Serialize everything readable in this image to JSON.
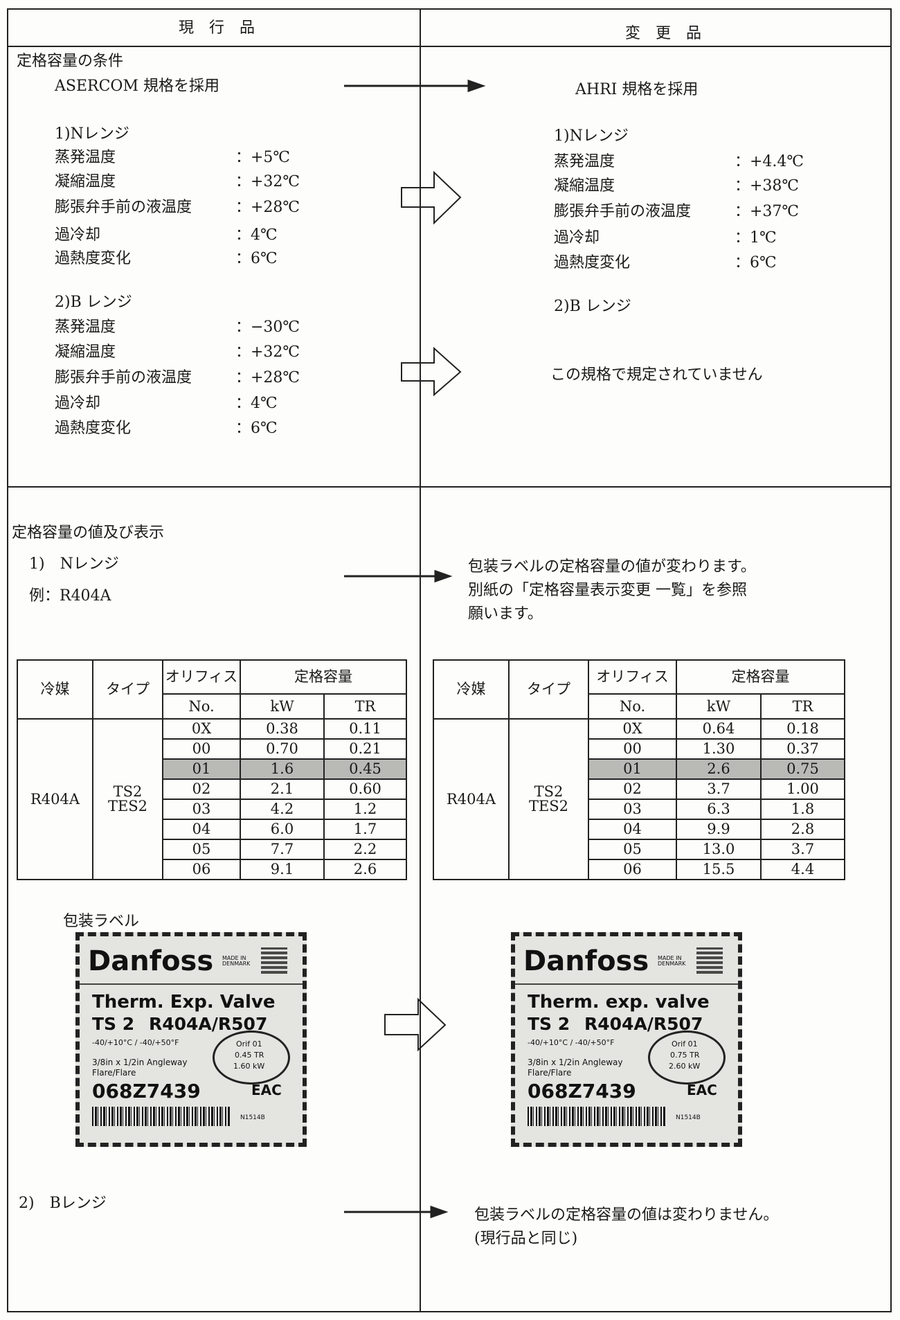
{
  "header": {
    "current": "現　行　品",
    "changed": "変　更　品"
  },
  "conditions": {
    "title": "定格容量の条件",
    "current": {
      "standard": "ASERCOM 規格を採用",
      "n_range": {
        "title": "1)Nレンジ",
        "rows": [
          [
            "蒸発温度",
            "：",
            "+5℃"
          ],
          [
            "凝縮温度",
            "：",
            "+32℃"
          ],
          [
            "膨張弁手前の液温度",
            "：",
            "+28℃"
          ],
          [
            "過冷却",
            "：",
            "4℃"
          ],
          [
            "過熱度変化",
            "：",
            "6℃"
          ]
        ]
      },
      "b_range": {
        "title": "2)B レンジ",
        "rows": [
          [
            "蒸発温度",
            "：",
            "−30℃"
          ],
          [
            "凝縮温度",
            "：",
            "+32℃"
          ],
          [
            "膨張弁手前の液温度",
            "：",
            "+28℃"
          ],
          [
            "過冷却",
            "：",
            "4℃"
          ],
          [
            "過熱度変化",
            "：",
            "6℃"
          ]
        ]
      }
    },
    "changed": {
      "standard": "AHRI 規格を採用",
      "n_range": {
        "title": "1)Nレンジ",
        "rows": [
          [
            "蒸発温度",
            "：",
            "+4.4℃"
          ],
          [
            "凝縮温度",
            "：",
            "+38℃"
          ],
          [
            "膨張弁手前の液温度",
            "：",
            "+37℃"
          ],
          [
            "過冷却",
            "：",
            "1℃"
          ],
          [
            "過熱度変化",
            "：",
            "6℃"
          ]
        ]
      },
      "b_range": {
        "title": "2)B レンジ",
        "note": "この規格で規定されていません"
      }
    }
  },
  "capacity": {
    "title": "定格容量の値及び表示",
    "n_range": "1)　Nレンジ",
    "example": "例：R404A",
    "changed_note": [
      "包装ラベルの定格容量の値が変わります。",
      "別紙の「定格容量表示変更 一覧」を参照",
      "願います。"
    ],
    "current_table": {
      "header": {
        "refrigerant": "冷媒",
        "type": "タイプ",
        "orifice": "オリフィス",
        "orifice_no": "No.",
        "capacity": "定格容量",
        "kw": "kW",
        "tr": "TR"
      },
      "refrigerant": "R404A",
      "type": [
        "TS2",
        "TES2"
      ],
      "rows": [
        [
          "0X",
          "0.38",
          "0.11"
        ],
        [
          "00",
          "0.70",
          "0.21"
        ],
        [
          "01",
          "1.6",
          "0.45"
        ],
        [
          "02",
          "2.1",
          "0.60"
        ],
        [
          "03",
          "4.2",
          "1.2"
        ],
        [
          "04",
          "6.0",
          "1.7"
        ],
        [
          "05",
          "7.7",
          "2.2"
        ],
        [
          "06",
          "9.1",
          "2.6"
        ]
      ]
    },
    "changed_table": {
      "header": {
        "refrigerant": "冷媒",
        "type": "タイプ",
        "orifice": "オリフィス",
        "orifice_no": "No.",
        "capacity": "定格容量",
        "kw": "kW",
        "tr": "TR"
      },
      "refrigerant": "R404A",
      "type": [
        "TS2",
        "TES2"
      ],
      "rows": [
        [
          "0X",
          "0.64",
          "0.18"
        ],
        [
          "00",
          "1.30",
          "0.37"
        ],
        [
          "01",
          "2.6",
          "0.75"
        ],
        [
          "02",
          "3.7",
          "1.00"
        ],
        [
          "03",
          "6.3",
          "1.8"
        ],
        [
          "04",
          "9.9",
          "2.8"
        ],
        [
          "05",
          "13.0",
          "3.7"
        ],
        [
          "06",
          "15.5",
          "4.4"
        ]
      ]
    },
    "label_caption": "包装ラベル",
    "current_label": {
      "brand": "Danfoss",
      "made": "MADE IN DENMARK",
      "product": "Therm. Exp. Valve",
      "model": "TS 2",
      "refrigerant": "R404A/R507",
      "range": "-40/+10°C / -40/+50°F",
      "orifice": "Orif 01",
      "tr": "0.45 TR",
      "kw": "1.60 kW",
      "connection": "3/8in x 1/2in Angleway",
      "flare": "Flare/Flare",
      "code": "068Z7439",
      "batch": "N1514B",
      "cert": "EAC"
    },
    "changed_label": {
      "brand": "Danfoss",
      "made": "MADE IN DENMARK",
      "product": "Therm. exp. valve",
      "model": "TS 2",
      "refrigerant": "R404A/R507",
      "range": "-40/+10°C / -40/+50°F",
      "orifice": "Orif 01",
      "tr": "0.75 TR",
      "kw": "2.60 kW",
      "connection": "3/8in x 1/2in Angleway",
      "flare": "Flare/Flare",
      "code": "068Z7439",
      "batch": "N1514B",
      "cert": "EAC"
    },
    "b_range": "2)　Bレンジ",
    "b_range_note": [
      "包装ラベルの定格容量の値は変わりません。",
      "(現行品と同じ)"
    ]
  }
}
